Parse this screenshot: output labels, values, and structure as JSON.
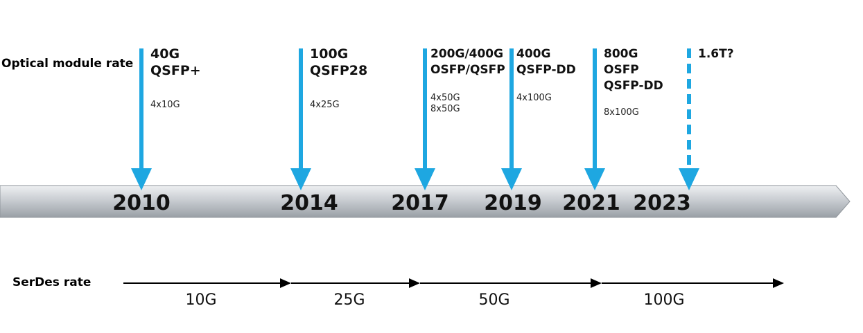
{
  "labels": {
    "optical": "Optical module rate",
    "serdes": "SerDes rate"
  },
  "colors": {
    "arrow": "#1ea7e1",
    "timeline": "#bfc3c8",
    "timeline_dark": "#9aa0a6",
    "year_text": "#111111",
    "serdes_line": "#000000"
  },
  "milestones": [
    {
      "year": "2010",
      "head": [
        "40G",
        "QSFP+"
      ],
      "lanes": [
        "4x10G"
      ],
      "dashed": false
    },
    {
      "year": "2014",
      "head": [
        "100G",
        "QSFP28"
      ],
      "lanes": [
        "4x25G"
      ],
      "dashed": false
    },
    {
      "year": "2017",
      "head": [
        "200G/400G",
        "OSFP/QSFP"
      ],
      "lanes": [
        "4x50G",
        "8x50G"
      ],
      "dashed": false
    },
    {
      "year": "2019",
      "head": [
        "400G",
        "QSFP-DD"
      ],
      "lanes": [
        "4x100G"
      ],
      "dashed": false
    },
    {
      "year": "2021",
      "head": [
        "800G",
        "OSFP",
        "QSFP-DD"
      ],
      "lanes": [
        "8x100G"
      ],
      "dashed": false
    },
    {
      "year": "2023",
      "head": [
        "1.6T?"
      ],
      "lanes": [],
      "dashed": true
    }
  ],
  "serdes": [
    {
      "label": "10G"
    },
    {
      "label": "25G"
    },
    {
      "label": "50G"
    },
    {
      "label": "100G"
    }
  ]
}
